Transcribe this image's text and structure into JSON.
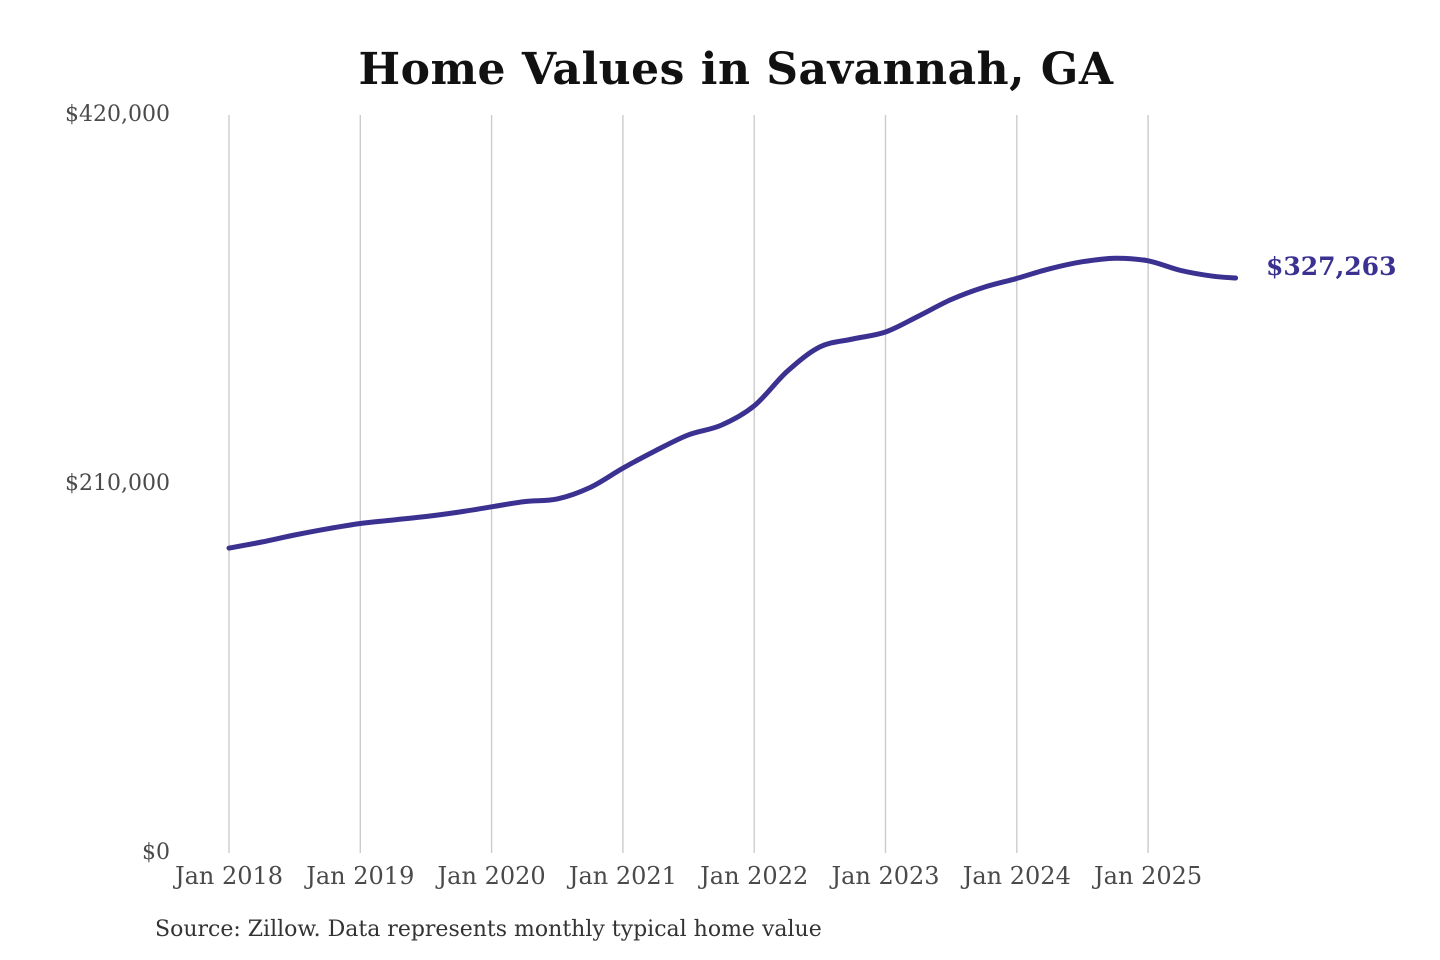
{
  "title": "Home Values in Savannah, GA",
  "source_note": "Source: Zillow. Data represents monthly typical home value",
  "end_label": "$327,263",
  "colors": {
    "line": "#3a3191",
    "value_label": "#3a3191",
    "grid": "#cccccc",
    "axis_text": "#4a4a4a",
    "title_text": "#111111",
    "source_text": "#333333",
    "background": "#ffffff"
  },
  "y_axis": {
    "ticks": [
      {
        "label": "$420,000",
        "value": 420000
      },
      {
        "label": "$210,000",
        "value": 210000
      },
      {
        "label": "$0",
        "value": 0
      }
    ]
  },
  "x_axis": {
    "ticks": [
      {
        "label": "Jan 2018",
        "date": "2018-01"
      },
      {
        "label": "Jan 2019",
        "date": "2019-01"
      },
      {
        "label": "Jan 2020",
        "date": "2020-01"
      },
      {
        "label": "Jan 2021",
        "date": "2021-01"
      },
      {
        "label": "Jan 2022",
        "date": "2022-01"
      },
      {
        "label": "Jan 2023",
        "date": "2023-01"
      },
      {
        "label": "Jan 2024",
        "date": "2024-01"
      },
      {
        "label": "Jan 2025",
        "date": "2025-01"
      }
    ]
  },
  "chart_data": {
    "type": "line",
    "title": "Home Values in Savannah, GA",
    "series_name": "Typical home value (monthly, Zillow)",
    "x": [
      "2018-01",
      "2018-04",
      "2018-07",
      "2018-10",
      "2019-01",
      "2019-04",
      "2019-07",
      "2019-10",
      "2020-01",
      "2020-04",
      "2020-07",
      "2020-10",
      "2021-01",
      "2021-04",
      "2021-07",
      "2021-10",
      "2022-01",
      "2022-04",
      "2022-07",
      "2022-10",
      "2023-01",
      "2023-04",
      "2023-07",
      "2023-10",
      "2024-01",
      "2024-04",
      "2024-07",
      "2024-10",
      "2025-01",
      "2025-04",
      "2025-07",
      "2025-09"
    ],
    "values": [
      173500,
      177000,
      181000,
      184500,
      187500,
      189500,
      191500,
      194000,
      197000,
      200000,
      201500,
      208000,
      219000,
      229000,
      238000,
      243500,
      254500,
      274000,
      288000,
      292500,
      296500,
      305500,
      315000,
      322000,
      327000,
      332500,
      336500,
      338500,
      337000,
      331500,
      328200,
      327263
    ],
    "last_value_label": "$327,263",
    "last_value": 327263,
    "ylim": [
      0,
      420000
    ],
    "y_ticks": [
      0,
      210000,
      420000
    ],
    "x_tick_labels": [
      "Jan 2018",
      "Jan 2019",
      "Jan 2020",
      "Jan 2021",
      "Jan 2022",
      "Jan 2023",
      "Jan 2024",
      "Jan 2025"
    ],
    "grid": "vertical-only",
    "legend": "none",
    "xlabel": "",
    "ylabel": ""
  }
}
